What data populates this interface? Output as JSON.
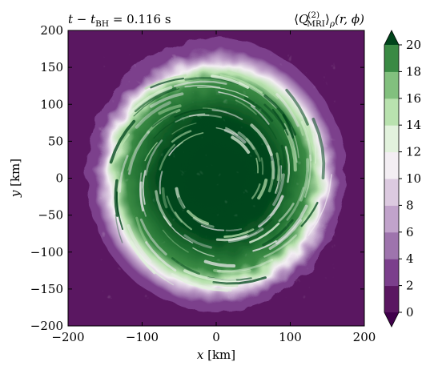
{
  "chart_data": {
    "type": "heatmap",
    "title_left": {
      "lhs_t": "t",
      "lhs_minus": " − ",
      "lhs_t2": "t",
      "lhs_sub": "BH",
      "equals": " = 0.116 s"
    },
    "title_right": {
      "open": "⟨",
      "Q": "Q",
      "sup": "(2)",
      "sub": "MRI",
      "close": "⟩",
      "rho": "ρ",
      "args": "(r, ϕ)"
    },
    "xlabel": {
      "var": "x",
      "unit": " [km]"
    },
    "ylabel": {
      "var": "y",
      "unit": " [km]"
    },
    "xlim": [
      -200,
      200
    ],
    "ylim": [
      -200,
      200
    ],
    "xticks": [
      -200,
      -100,
      0,
      100,
      200
    ],
    "xtick_labels": [
      "−200",
      "−100",
      "0",
      "100",
      "200"
    ],
    "yticks": [
      -200,
      -150,
      -100,
      -50,
      0,
      50,
      100,
      150,
      200
    ],
    "ytick_labels": [
      "−200",
      "−150",
      "−100",
      "−50",
      "0",
      "50",
      "100",
      "150",
      "200"
    ],
    "colorbar": {
      "levels": [
        0,
        2,
        4,
        6,
        8,
        10,
        12,
        14,
        16,
        18,
        20
      ],
      "tick_labels": [
        "0",
        "2",
        "4",
        "6",
        "8",
        "10",
        "12",
        "14",
        "16",
        "18",
        "20"
      ],
      "extend": "both",
      "colormap": "PRGn",
      "colors": [
        "#5a1761",
        "#7b3f8c",
        "#9e74ad",
        "#c1a3cb",
        "#dccae0",
        "#f3eef3",
        "#e2f2dd",
        "#b9e2af",
        "#82c07e",
        "#3a8a44",
        "#00461b"
      ],
      "under_color": "#40004b",
      "over_color": "#00441b"
    },
    "background_value_color": "#5a1761",
    "disk": {
      "center": [
        0,
        0
      ],
      "outer_radius_km": 165,
      "description_values": {
        "outer_ring": [
          0,
          8
        ],
        "mid_ring": [
          8,
          16
        ],
        "inner_region": [
          16,
          20
        ]
      }
    }
  }
}
